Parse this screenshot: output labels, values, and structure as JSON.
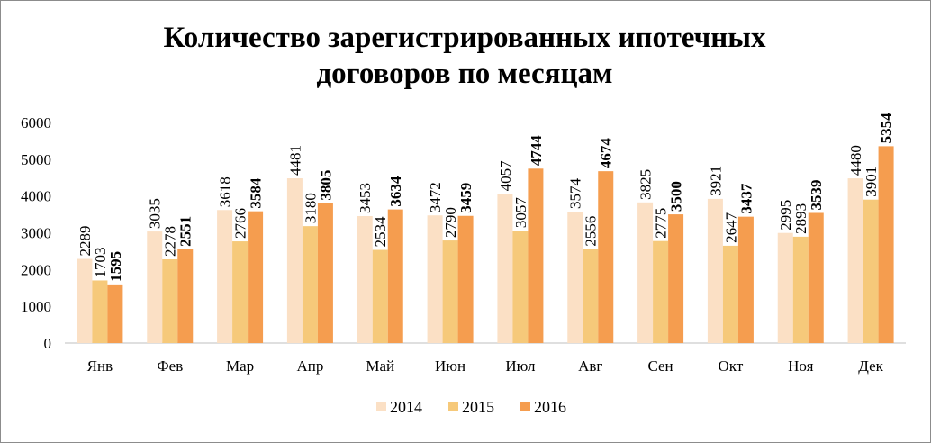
{
  "chart_data": {
    "type": "bar",
    "title": "Количество зарегистрированных ипотечных договоров по месяцам",
    "title_lines": [
      "Количество зарегистрированных ипотечных",
      "договоров по месяцам"
    ],
    "categories": [
      "Янв",
      "Фев",
      "Мар",
      "Апр",
      "Май",
      "Июн",
      "Июл",
      "Авг",
      "Сен",
      "Окт",
      "Ноя",
      "Дек"
    ],
    "series": [
      {
        "name": "2014",
        "color": "#fbe0c5",
        "values": [
          2289,
          3035,
          3618,
          4481,
          3453,
          3472,
          4057,
          3574,
          3825,
          3921,
          2995,
          4480
        ]
      },
      {
        "name": "2015",
        "color": "#f6c97a",
        "values": [
          1703,
          2278,
          2766,
          3180,
          2534,
          2790,
          3057,
          2556,
          2775,
          2647,
          2893,
          3901
        ]
      },
      {
        "name": "2016",
        "color": "#f59d4f",
        "values": [
          1595,
          2551,
          3584,
          3805,
          3634,
          3459,
          4744,
          4674,
          3500,
          3437,
          3539,
          5354
        ]
      }
    ],
    "y_ticks": [
      "0",
      "1000",
      "2000",
      "3000",
      "4000",
      "5000",
      "6000"
    ],
    "ylim": [
      0,
      6000
    ],
    "xlabel": "",
    "ylabel": "",
    "grid": false,
    "legend_position": "bottom",
    "data_labels": "vertical, last series bold"
  }
}
